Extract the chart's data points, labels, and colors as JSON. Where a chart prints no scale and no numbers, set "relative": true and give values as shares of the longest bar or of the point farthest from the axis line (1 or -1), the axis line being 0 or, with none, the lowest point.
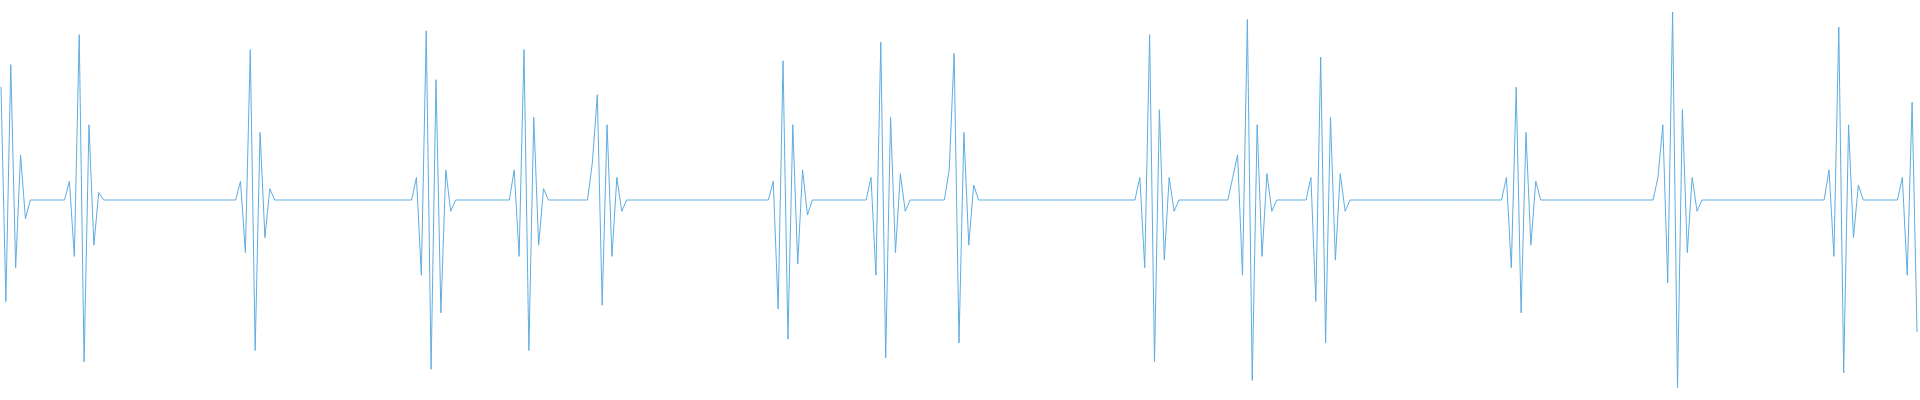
{
  "chart_data": {
    "type": "line",
    "relative": true,
    "categories": [
      null,
      null,
      null,
      null,
      null,
      null,
      null,
      null,
      null,
      null,
      null,
      null,
      null,
      null,
      null,
      null,
      null,
      null,
      null,
      null,
      null,
      null,
      null,
      null,
      null,
      null,
      null,
      null,
      null,
      null,
      null,
      null,
      null,
      null,
      null,
      null,
      null,
      null,
      null,
      null,
      null,
      null,
      null,
      null,
      null,
      null,
      null,
      null,
      null,
      null,
      null,
      null,
      null,
      null,
      null,
      null,
      null,
      null,
      null,
      null,
      null,
      null,
      null,
      null,
      null,
      null,
      null,
      null,
      null,
      null,
      null,
      null,
      null,
      null,
      null,
      null,
      null,
      null,
      null,
      null,
      null,
      null,
      null,
      null,
      null,
      null,
      null,
      null,
      null,
      null,
      null,
      null,
      null,
      null,
      null,
      null,
      null,
      null,
      null,
      null,
      null,
      null,
      null,
      null,
      null,
      null,
      null,
      null,
      null,
      null,
      null,
      null,
      null,
      null,
      null,
      null,
      null,
      null,
      null,
      null,
      null,
      null,
      null,
      null,
      null,
      null,
      null,
      null,
      null,
      null,
      null,
      null,
      null,
      null,
      null,
      null,
      null,
      null,
      null,
      null,
      null,
      null,
      null,
      null,
      null,
      null,
      null,
      null,
      null,
      null,
      null,
      null,
      null,
      null,
      null,
      null,
      null,
      null,
      null,
      null,
      null,
      null,
      null,
      null,
      null,
      null,
      null,
      null,
      null,
      null,
      null,
      null,
      null,
      null,
      null,
      null,
      null,
      null,
      null,
      null,
      null,
      null,
      null,
      null,
      null,
      null,
      null,
      null,
      null,
      null,
      null,
      null,
      null,
      null,
      null,
      null,
      null,
      null,
      null,
      null,
      null,
      null,
      null,
      null,
      null,
      null,
      null,
      null,
      null,
      null,
      null,
      null,
      null,
      null,
      null,
      null,
      null,
      null,
      null,
      null,
      null,
      null,
      null,
      null,
      null,
      null,
      null,
      null,
      null,
      null,
      null,
      null,
      null,
      null,
      null,
      null,
      null,
      null,
      null,
      null,
      null,
      null,
      null,
      null,
      null,
      null,
      null,
      null,
      null,
      null,
      null,
      null,
      null,
      null,
      null,
      null,
      null,
      null,
      null,
      null,
      null,
      null,
      null,
      null,
      null,
      null,
      null,
      null,
      null,
      null,
      null,
      null,
      null,
      null,
      null,
      null,
      null,
      null,
      null,
      null,
      null,
      null,
      null,
      null,
      null,
      null,
      null,
      null,
      null,
      null,
      null,
      null,
      null,
      null,
      null,
      null,
      null,
      null,
      null,
      null,
      null,
      null,
      null,
      null,
      null,
      null,
      null,
      null,
      null,
      null,
      null,
      null,
      null,
      null,
      null,
      null,
      null,
      null,
      null,
      null,
      null,
      null,
      null,
      null,
      null,
      null,
      null,
      null,
      null,
      null,
      null,
      null,
      null,
      null,
      null,
      null,
      null,
      null,
      null,
      null,
      null,
      null,
      null,
      null,
      null,
      null,
      null,
      null,
      null,
      null,
      null,
      null,
      null,
      null,
      null,
      null,
      null,
      null,
      null,
      null,
      null,
      null,
      null,
      null,
      null,
      null,
      null,
      null,
      null,
      null,
      null,
      null,
      null,
      null,
      null,
      null,
      null,
      null,
      null,
      null,
      null,
      null,
      null,
      null,
      null,
      null,
      null,
      null,
      null,
      null,
      null,
      null,
      null
    ],
    "series": [
      {
        "color": "#5dade2",
        "values": [
          0.8,
          0.23,
          0.86,
          0.32,
          0.62,
          0.45,
          0.5,
          0.5,
          0.5,
          0.5,
          0.5,
          0.5,
          0.5,
          0.5,
          0.55,
          0.35,
          0.94,
          0.07,
          0.7,
          0.38,
          0.52,
          0.5,
          0.5,
          0.5,
          0.5,
          0.5,
          0.5,
          0.5,
          0.5,
          0.5,
          0.5,
          0.5,
          0.5,
          0.5,
          0.5,
          0.5,
          0.5,
          0.5,
          0.5,
          0.5,
          0.5,
          0.5,
          0.5,
          0.5,
          0.5,
          0.5,
          0.5,
          0.5,
          0.5,
          0.55,
          0.36,
          0.9,
          0.1,
          0.68,
          0.4,
          0.53,
          0.5,
          0.5,
          0.5,
          0.5,
          0.5,
          0.5,
          0.5,
          0.5,
          0.5,
          0.5,
          0.5,
          0.5,
          0.5,
          0.5,
          0.5,
          0.5,
          0.5,
          0.5,
          0.5,
          0.5,
          0.5,
          0.5,
          0.5,
          0.5,
          0.5,
          0.5,
          0.5,
          0.5,
          0.5,
          0.56,
          0.3,
          0.95,
          0.05,
          0.82,
          0.2,
          0.58,
          0.47,
          0.5,
          0.5,
          0.5,
          0.5,
          0.5,
          0.5,
          0.5,
          0.5,
          0.5,
          0.5,
          0.5,
          0.5,
          0.58,
          0.35,
          0.9,
          0.1,
          0.72,
          0.38,
          0.53,
          0.5,
          0.5,
          0.5,
          0.5,
          0.5,
          0.5,
          0.5,
          0.5,
          0.5,
          0.6,
          0.78,
          0.22,
          0.7,
          0.35,
          0.56,
          0.47,
          0.5,
          0.5,
          0.5,
          0.5,
          0.5,
          0.5,
          0.5,
          0.5,
          0.5,
          0.5,
          0.5,
          0.5,
          0.5,
          0.5,
          0.5,
          0.5,
          0.5,
          0.5,
          0.5,
          0.5,
          0.5,
          0.5,
          0.5,
          0.5,
          0.5,
          0.5,
          0.5,
          0.5,
          0.5,
          0.5,
          0.55,
          0.21,
          0.87,
          0.13,
          0.7,
          0.33,
          0.58,
          0.46,
          0.5,
          0.5,
          0.5,
          0.5,
          0.5,
          0.5,
          0.5,
          0.5,
          0.5,
          0.5,
          0.5,
          0.5,
          0.56,
          0.3,
          0.92,
          0.08,
          0.72,
          0.36,
          0.57,
          0.47,
          0.5,
          0.5,
          0.5,
          0.5,
          0.5,
          0.5,
          0.5,
          0.5,
          0.58,
          0.89,
          0.12,
          0.68,
          0.38,
          0.54,
          0.5,
          0.5,
          0.5,
          0.5,
          0.5,
          0.5,
          0.5,
          0.5,
          0.5,
          0.5,
          0.5,
          0.5,
          0.5,
          0.5,
          0.5,
          0.5,
          0.5,
          0.5,
          0.5,
          0.5,
          0.5,
          0.5,
          0.5,
          0.5,
          0.5,
          0.5,
          0.5,
          0.5,
          0.5,
          0.5,
          0.5,
          0.5,
          0.5,
          0.56,
          0.32,
          0.94,
          0.07,
          0.74,
          0.34,
          0.56,
          0.47,
          0.5,
          0.5,
          0.5,
          0.5,
          0.5,
          0.5,
          0.5,
          0.5,
          0.5,
          0.5,
          0.5,
          0.56,
          0.62,
          0.3,
          0.98,
          0.02,
          0.7,
          0.35,
          0.57,
          0.47,
          0.5,
          0.5,
          0.5,
          0.5,
          0.5,
          0.5,
          0.5,
          0.56,
          0.23,
          0.88,
          0.12,
          0.72,
          0.34,
          0.57,
          0.47,
          0.5,
          0.5,
          0.5,
          0.5,
          0.5,
          0.5,
          0.5,
          0.5,
          0.5,
          0.5,
          0.5,
          0.5,
          0.5,
          0.5,
          0.5,
          0.5,
          0.5,
          0.5,
          0.5,
          0.5,
          0.5,
          0.5,
          0.5,
          0.5,
          0.5,
          0.5,
          0.5,
          0.5,
          0.5,
          0.5,
          0.5,
          0.5,
          0.56,
          0.32,
          0.8,
          0.2,
          0.68,
          0.38,
          0.55,
          0.5,
          0.5,
          0.5,
          0.5,
          0.5,
          0.5,
          0.5,
          0.5,
          0.5,
          0.5,
          0.5,
          0.5,
          0.5,
          0.5,
          0.5,
          0.5,
          0.5,
          0.5,
          0.5,
          0.5,
          0.5,
          0.5,
          0.5,
          0.5,
          0.56,
          0.7,
          0.28,
          1,
          0,
          0.74,
          0.36,
          0.56,
          0.47,
          0.5,
          0.5,
          0.5,
          0.5,
          0.5,
          0.5,
          0.5,
          0.5,
          0.5,
          0.5,
          0.5,
          0.5,
          0.5,
          0.5,
          0.5,
          0.5,
          0.5,
          0.5,
          0.5,
          0.5,
          0.5,
          0.5,
          0.5,
          0.5,
          0.5,
          0.5,
          0.58,
          0.35,
          0.96,
          0.04,
          0.7,
          0.4,
          0.54,
          0.5,
          0.5,
          0.5,
          0.5,
          0.5,
          0.5,
          0.5,
          0.5,
          0.56,
          0.3,
          0.76,
          0.15
        ]
      }
    ]
  }
}
